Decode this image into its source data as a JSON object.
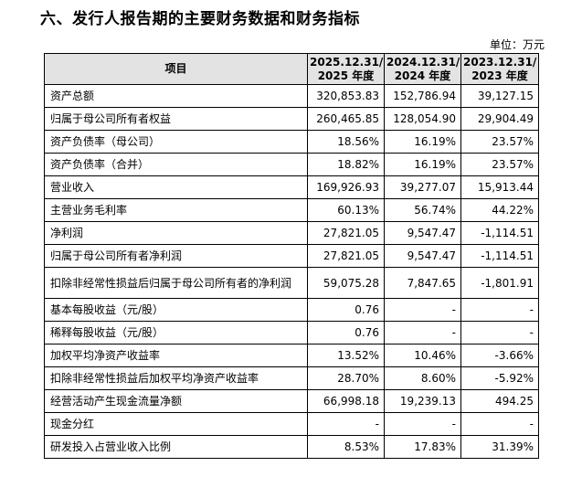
{
  "heading": "六、发行人报告期的主要财务数据和财务指标",
  "unit": "单位：万元",
  "table": {
    "header": {
      "item": "项目",
      "col1_date": "2025.12.31/",
      "col1_year": "2025 年度",
      "col2_date": "2024.12.31/",
      "col2_year": "2024 年度",
      "col3_date": "2023.12.31/",
      "col3_year": "2023 年度"
    },
    "rows": [
      {
        "label": "资产总额",
        "v1": "320,853.83",
        "v2": "152,786.94",
        "v3": "39,127.15"
      },
      {
        "label": "归属于母公司所有者权益",
        "v1": "260,465.85",
        "v2": "128,054.90",
        "v3": "29,904.49"
      },
      {
        "label": "资产负债率（母公司）",
        "v1": "18.56%",
        "v2": "16.19%",
        "v3": "23.57%"
      },
      {
        "label": "资产负债率（合并）",
        "v1": "18.82%",
        "v2": "16.19%",
        "v3": "23.57%"
      },
      {
        "label": "营业收入",
        "v1": "169,926.93",
        "v2": "39,277.07",
        "v3": "15,913.44"
      },
      {
        "label": "主营业务毛利率",
        "v1": "60.13%",
        "v2": "56.74%",
        "v3": "44.22%"
      },
      {
        "label": "净利润",
        "v1": "27,821.05",
        "v2": "9,547.47",
        "v3": "-1,114.51"
      },
      {
        "label": "归属于母公司所有者净利润",
        "v1": "27,821.05",
        "v2": "9,547.47",
        "v3": "-1,114.51"
      },
      {
        "label": "扣除非经常性损益后归属于母公司所有者的净利润",
        "v1": "59,075.28",
        "v2": "7,847.65",
        "v3": "-1,801.91"
      },
      {
        "label": "基本每股收益（元/股）",
        "v1": "0.76",
        "v2": "-",
        "v3": "-"
      },
      {
        "label": "稀释每股收益（元/股）",
        "v1": "0.76",
        "v2": "-",
        "v3": "-"
      },
      {
        "label": "加权平均净资产收益率",
        "v1": "13.52%",
        "v2": "10.46%",
        "v3": "-3.66%"
      },
      {
        "label": "扣除非经常性损益后加权平均净资产收益率",
        "v1": "28.70%",
        "v2": "8.60%",
        "v3": "-5.92%"
      },
      {
        "label": "经营活动产生现金流量净额",
        "v1": "66,998.18",
        "v2": "19,239.13",
        "v3": "494.25"
      },
      {
        "label": "现金分红",
        "v1": "-",
        "v2": "-",
        "v3": "-"
      },
      {
        "label": "研发投入占营业收入比例",
        "v1": "8.53%",
        "v2": "17.83%",
        "v3": "31.39%"
      }
    ]
  }
}
